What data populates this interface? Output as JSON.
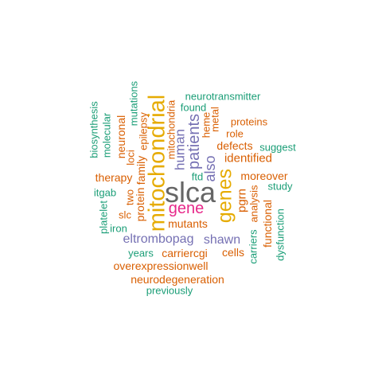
{
  "palette": {
    "teal": "#1b9e77",
    "orange": "#d95f02",
    "purple": "#7570b3",
    "magenta": "#e7298a",
    "olive": "#66a61e",
    "gold": "#e6ab02",
    "gray": "#666666"
  },
  "words": [
    {
      "text": "slca",
      "color": "gray"
    },
    {
      "text": "mitochondrial",
      "color": "gold"
    },
    {
      "text": "genes",
      "color": "gold"
    },
    {
      "text": "gene",
      "color": "magenta"
    },
    {
      "text": "patients",
      "color": "purple"
    },
    {
      "text": "human",
      "color": "purple"
    },
    {
      "text": "also",
      "color": "purple"
    },
    {
      "text": "eltrombopag",
      "color": "purple"
    },
    {
      "text": "shawn",
      "color": "purple"
    },
    {
      "text": "mutants",
      "color": "orange"
    },
    {
      "text": "mitochondria",
      "color": "orange"
    },
    {
      "text": "protein",
      "color": "orange"
    },
    {
      "text": "family",
      "color": "orange"
    },
    {
      "text": "epilepsy",
      "color": "orange"
    },
    {
      "text": "neuronal",
      "color": "orange"
    },
    {
      "text": "loci",
      "color": "orange"
    },
    {
      "text": "two",
      "color": "orange"
    },
    {
      "text": "slc",
      "color": "orange"
    },
    {
      "text": "therapy",
      "color": "orange"
    },
    {
      "text": "heme",
      "color": "orange"
    },
    {
      "text": "metal",
      "color": "orange"
    },
    {
      "text": "pgrn",
      "color": "orange"
    },
    {
      "text": "analysis",
      "color": "orange"
    },
    {
      "text": "functional",
      "color": "orange"
    },
    {
      "text": "moreover",
      "color": "orange"
    },
    {
      "text": "proteins",
      "color": "orange"
    },
    {
      "text": "role",
      "color": "orange"
    },
    {
      "text": "defects",
      "color": "orange"
    },
    {
      "text": "identified",
      "color": "orange"
    },
    {
      "text": "carriercgi",
      "color": "orange"
    },
    {
      "text": "cells",
      "color": "orange"
    },
    {
      "text": "overexpressionwell",
      "color": "orange"
    },
    {
      "text": "neurodegeneration",
      "color": "orange"
    },
    {
      "text": "neurotransmitter",
      "color": "teal"
    },
    {
      "text": "found",
      "color": "teal"
    },
    {
      "text": "ftd",
      "color": "teal"
    },
    {
      "text": "suggest",
      "color": "teal"
    },
    {
      "text": "study",
      "color": "teal"
    },
    {
      "text": "carriers",
      "color": "teal"
    },
    {
      "text": "dysfunction",
      "color": "teal"
    },
    {
      "text": "mutations",
      "color": "teal"
    },
    {
      "text": "biosynthesis",
      "color": "teal"
    },
    {
      "text": "molecular",
      "color": "teal"
    },
    {
      "text": "platelet",
      "color": "teal"
    },
    {
      "text": "iron",
      "color": "teal"
    },
    {
      "text": "itgab",
      "color": "teal"
    },
    {
      "text": "years",
      "color": "teal"
    },
    {
      "text": "previously",
      "color": "teal"
    }
  ]
}
